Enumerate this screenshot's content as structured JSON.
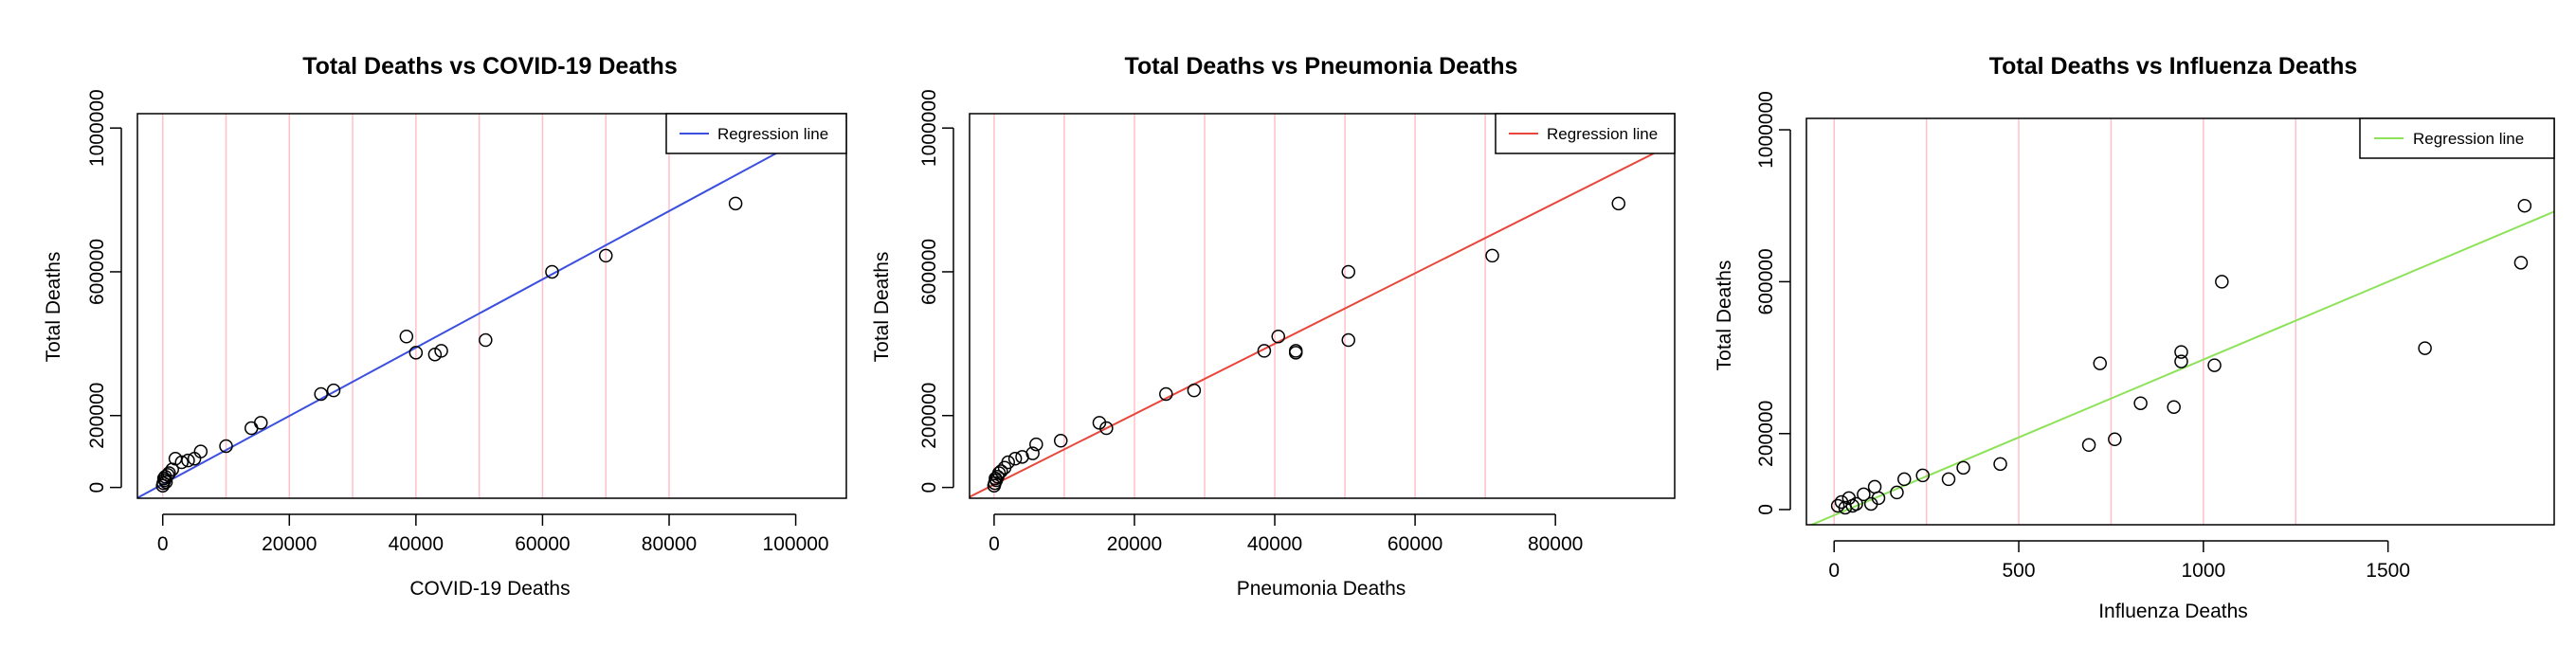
{
  "chart_data": [
    {
      "type": "scatter",
      "title": "Total Deaths vs COVID-19 Deaths",
      "xlabel": "COVID-19 Deaths",
      "ylabel": "Total Deaths",
      "xlim": [
        -4000,
        108000
      ],
      "ylim": [
        -30000,
        1040000
      ],
      "xticks": [
        0,
        20000,
        40000,
        60000,
        80000,
        100000
      ],
      "yticks": [
        0,
        200000,
        600000,
        1000000
      ],
      "ytick_labels": [
        "0",
        "200000",
        "600000",
        "1000000"
      ],
      "vgrid": [
        0,
        10000,
        20000,
        30000,
        40000,
        50000,
        60000,
        70000,
        80000
      ],
      "grid_color": "#ffc0cb",
      "legend": {
        "label": "Regression line",
        "position": "top-right"
      },
      "regression": {
        "color": "#3b4fe0",
        "slope": 9.5,
        "intercept": 9000
      },
      "points": [
        [
          0,
          5000
        ],
        [
          100,
          12000
        ],
        [
          200,
          25000
        ],
        [
          300,
          20000
        ],
        [
          400,
          30000
        ],
        [
          500,
          15000
        ],
        [
          800,
          35000
        ],
        [
          1000,
          40000
        ],
        [
          1500,
          50000
        ],
        [
          2000,
          80000
        ],
        [
          3000,
          70000
        ],
        [
          4000,
          75000
        ],
        [
          5000,
          80000
        ],
        [
          6000,
          100000
        ],
        [
          10000,
          115000
        ],
        [
          14000,
          165000
        ],
        [
          15500,
          180000
        ],
        [
          25000,
          260000
        ],
        [
          27000,
          270000
        ],
        [
          38500,
          420000
        ],
        [
          40000,
          375000
        ],
        [
          43000,
          370000
        ],
        [
          44000,
          380000
        ],
        [
          51000,
          410000
        ],
        [
          61500,
          600000
        ],
        [
          70000,
          645000
        ],
        [
          90500,
          790000
        ]
      ]
    },
    {
      "type": "scatter",
      "title": "Total Deaths vs Pneumonia Deaths",
      "xlabel": "Pneumonia Deaths",
      "ylabel": "Total Deaths",
      "xlim": [
        -3500,
        97000
      ],
      "ylim": [
        -30000,
        1040000
      ],
      "xticks": [
        0,
        20000,
        40000,
        60000,
        80000
      ],
      "yticks": [
        0,
        200000,
        600000,
        1000000
      ],
      "ytick_labels": [
        "0",
        "200000",
        "600000",
        "1000000"
      ],
      "vgrid": [
        0,
        10000,
        20000,
        30000,
        40000,
        50000,
        60000,
        70000
      ],
      "grid_color": "#ffc0cb",
      "legend": {
        "label": "Regression line",
        "position": "top-right"
      },
      "regression": {
        "color": "#e8463a",
        "slope": 9.8,
        "intercept": 8000
      },
      "points": [
        [
          0,
          5000
        ],
        [
          100,
          12000
        ],
        [
          200,
          25000
        ],
        [
          300,
          20000
        ],
        [
          500,
          30000
        ],
        [
          700,
          40000
        ],
        [
          1000,
          45000
        ],
        [
          1500,
          55000
        ],
        [
          2000,
          70000
        ],
        [
          3000,
          80000
        ],
        [
          4000,
          85000
        ],
        [
          5500,
          95000
        ],
        [
          6000,
          120000
        ],
        [
          9500,
          130000
        ],
        [
          15000,
          180000
        ],
        [
          16000,
          165000
        ],
        [
          24500,
          260000
        ],
        [
          28500,
          270000
        ],
        [
          38500,
          380000
        ],
        [
          40500,
          420000
        ],
        [
          43000,
          375000
        ],
        [
          43000,
          380000
        ],
        [
          50500,
          410000
        ],
        [
          50500,
          600000
        ],
        [
          71000,
          645000
        ],
        [
          89000,
          790000
        ]
      ]
    },
    {
      "type": "scatter",
      "title": "Total Deaths vs Influenza Deaths",
      "xlabel": "Influenza Deaths",
      "ylabel": "Total Deaths",
      "xlim": [
        -75,
        1950
      ],
      "ylim": [
        -40000,
        1030000
      ],
      "xticks": [
        0,
        500,
        1000,
        1500
      ],
      "yticks": [
        0,
        200000,
        600000,
        1000000
      ],
      "ytick_labels": [
        "0",
        "200000",
        "600000",
        "1000000"
      ],
      "vgrid": [
        0,
        250,
        500,
        750,
        1000,
        1250
      ],
      "grid_color": "#ffc0cb",
      "legend": {
        "label": "Regression line",
        "position": "top-right"
      },
      "regression": {
        "color": "#8de25a",
        "slope": 410,
        "intercept": -15000
      },
      "points": [
        [
          10,
          10000
        ],
        [
          20,
          20000
        ],
        [
          30,
          5000
        ],
        [
          40,
          30000
        ],
        [
          50,
          10000
        ],
        [
          60,
          15000
        ],
        [
          80,
          40000
        ],
        [
          100,
          15000
        ],
        [
          110,
          60000
        ],
        [
          120,
          30000
        ],
        [
          170,
          45000
        ],
        [
          190,
          80000
        ],
        [
          240,
          90000
        ],
        [
          310,
          80000
        ],
        [
          350,
          110000
        ],
        [
          450,
          120000
        ],
        [
          690,
          170000
        ],
        [
          720,
          385000
        ],
        [
          760,
          185000
        ],
        [
          830,
          280000
        ],
        [
          920,
          270000
        ],
        [
          940,
          390000
        ],
        [
          940,
          415000
        ],
        [
          1030,
          380000
        ],
        [
          1050,
          600000
        ],
        [
          1600,
          425000
        ],
        [
          1860,
          650000
        ],
        [
          1870,
          800000
        ]
      ]
    }
  ]
}
